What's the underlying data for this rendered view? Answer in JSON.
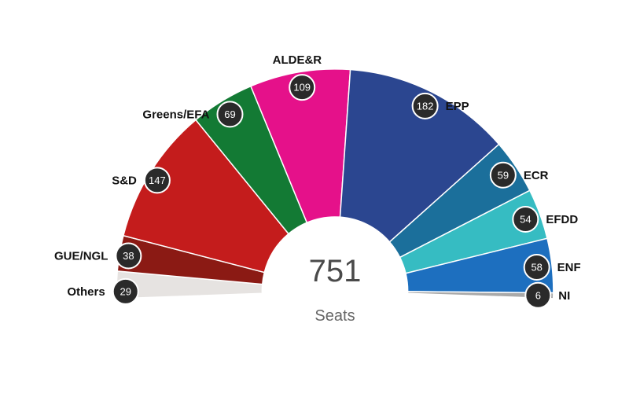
{
  "chart_data": {
    "type": "pie",
    "variant": "parliament-semicircle",
    "total": "751",
    "total_label": "Seats",
    "slices": [
      {
        "name": "Others",
        "value": 29,
        "color": "#e6e3e1"
      },
      {
        "name": "GUE/NGL",
        "value": 38,
        "color": "#8b1a14"
      },
      {
        "name": "S&D",
        "value": 147,
        "color": "#c41c1c"
      },
      {
        "name": "Greens/EFA",
        "value": 69,
        "color": "#137a34"
      },
      {
        "name": "ALDE&R",
        "value": 109,
        "color": "#e5118a"
      },
      {
        "name": "EPP",
        "value": 182,
        "color": "#2b4690"
      },
      {
        "name": "ECR",
        "value": 59,
        "color": "#1b6f9b"
      },
      {
        "name": "EFDD",
        "value": 54,
        "color": "#36bcc2"
      },
      {
        "name": "ENF",
        "value": 58,
        "color": "#1d6fbf"
      },
      {
        "name": "NI",
        "value": 6,
        "color": "#a9a9a9"
      }
    ]
  }
}
